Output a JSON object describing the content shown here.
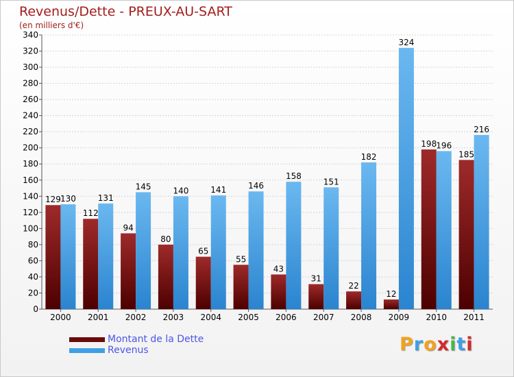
{
  "header": {
    "title": "Revenus/Dette - PREUX-AU-SART",
    "subtitle": "(en milliers d'€)"
  },
  "legend": {
    "items": [
      {
        "label": "Montant de la Dette",
        "color": "#6b0a0a"
      },
      {
        "label": "Revenus",
        "color": "#3f9fe6"
      }
    ]
  },
  "logo": {
    "letters": [
      "P",
      "r",
      "o",
      "x",
      "i",
      "t",
      "i"
    ],
    "colors": [
      "#f2a21e",
      "#3f9fe6",
      "#f2a21e",
      "#d42a2a",
      "#4bb54b",
      "#3f9fe6",
      "#d42a2a"
    ]
  },
  "colors": {
    "debt_top": "#9e2a2a",
    "debt_bottom": "#4d0000",
    "rev_top": "#6bb8f0",
    "rev_bottom": "#2a84cf"
  },
  "chart_data": {
    "type": "bar",
    "categories": [
      "2000",
      "2001",
      "2002",
      "2003",
      "2004",
      "2005",
      "2006",
      "2007",
      "2008",
      "2009",
      "2010",
      "2011"
    ],
    "series": [
      {
        "name": "Montant de la Dette",
        "values": [
          129,
          112,
          94,
          80,
          65,
          55,
          43,
          31,
          22,
          12,
          198,
          185
        ]
      },
      {
        "name": "Revenus",
        "values": [
          130,
          131,
          145,
          140,
          141,
          146,
          158,
          151,
          182,
          324,
          196,
          216
        ]
      }
    ],
    "ylim": [
      0,
      340
    ],
    "yticks": [
      0,
      20,
      40,
      60,
      80,
      100,
      120,
      140,
      160,
      180,
      200,
      220,
      240,
      260,
      280,
      300,
      320,
      340
    ],
    "grid": true,
    "legend_position": "bottom-left"
  }
}
